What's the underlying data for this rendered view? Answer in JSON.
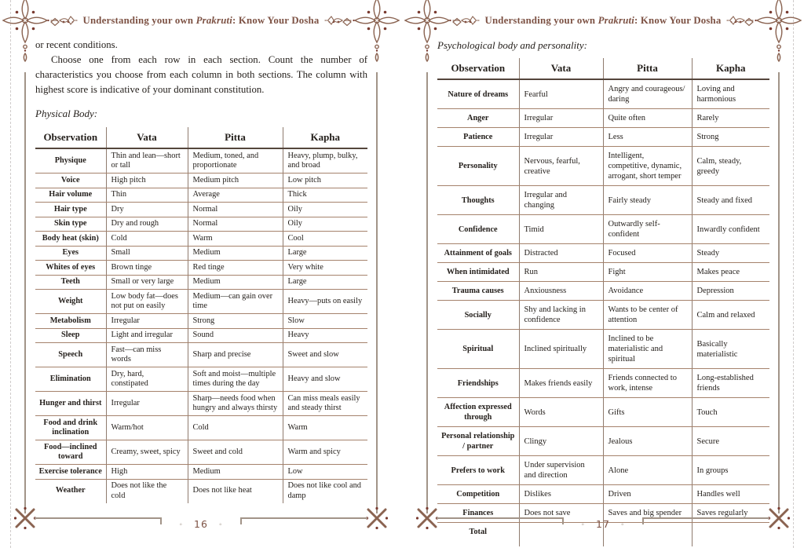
{
  "running_header": {
    "prefix": "Understanding your own ",
    "italic": "Prakruti",
    "suffix": ": Know Your Dosha"
  },
  "footer": {
    "decor": "◦"
  },
  "left_page": {
    "page_number": "16",
    "intro_continuation": "or recent conditions.",
    "intro_paragraph": "Choose one from each row in each section. Count the number of characteristics you choose from each column in both sections. The column with highest score is indicative of your dominant constitution.",
    "section_label": "Physical Body:",
    "table": {
      "headers": [
        "Observation",
        "Vata",
        "Pitta",
        "Kapha"
      ],
      "rows": [
        [
          "Physique",
          "Thin and lean—short or tall",
          "Medium, toned, and proportionate",
          "Heavy, plump, bulky, and broad"
        ],
        [
          "Voice",
          "High pitch",
          "Medium pitch",
          "Low pitch"
        ],
        [
          "Hair volume",
          "Thin",
          "Average",
          "Thick"
        ],
        [
          "Hair type",
          "Dry",
          "Normal",
          "Oily"
        ],
        [
          "Skin type",
          "Dry and rough",
          "Normal",
          "Oily"
        ],
        [
          "Body heat (skin)",
          "Cold",
          "Warm",
          "Cool"
        ],
        [
          "Eyes",
          "Small",
          "Medium",
          "Large"
        ],
        [
          "Whites of eyes",
          "Brown tinge",
          "Red tinge",
          "Very white"
        ],
        [
          "Teeth",
          "Small or very large",
          "Medium",
          "Large"
        ],
        [
          "Weight",
          "Low body fat—does not put on easily",
          "Medium—can gain over time",
          "Heavy—puts on easily"
        ],
        [
          "Metabolism",
          "Irregular",
          "Strong",
          "Slow"
        ],
        [
          "Sleep",
          "Light and irregular",
          "Sound",
          "Heavy"
        ],
        [
          "Speech",
          "Fast—can miss words",
          "Sharp and precise",
          "Sweet and slow"
        ],
        [
          "Elimination",
          "Dry, hard, constipated",
          "Soft and moist—multiple times during the day",
          "Heavy and slow"
        ],
        [
          "Hunger and thirst",
          "Irregular",
          "Sharp—needs food when hungry and always thirsty",
          "Can miss meals easily and steady thirst"
        ],
        [
          "Food and drink inclination",
          "Warm/hot",
          "Cold",
          "Warm"
        ],
        [
          "Food—inclined toward",
          "Creamy, sweet, spicy",
          "Sweet and cold",
          "Warm and spicy"
        ],
        [
          "Exercise tolerance",
          "High",
          "Medium",
          "Low"
        ],
        [
          "Weather",
          "Does not like the cold",
          "Does not like heat",
          "Does not like cool and damp"
        ]
      ]
    }
  },
  "right_page": {
    "page_number": "17",
    "section_label": "Psychological body and personality:",
    "table": {
      "headers": [
        "Observation",
        "Vata",
        "Pitta",
        "Kapha"
      ],
      "rows": [
        [
          "Nature of dreams",
          "Fearful",
          "Angry and courageous/ daring",
          "Loving and harmonious"
        ],
        [
          "Anger",
          "Irregular",
          "Quite often",
          "Rarely"
        ],
        [
          "Patience",
          "Irregular",
          "Less",
          "Strong"
        ],
        [
          "Personality",
          "Nervous, fearful, creative",
          "Intelligent, competitive, dynamic, arrogant, short temper",
          "Calm, steady, greedy"
        ],
        [
          "Thoughts",
          "Irregular and changing",
          "Fairly steady",
          "Steady and fixed"
        ],
        [
          "Confidence",
          "Timid",
          "Outwardly self-confident",
          "Inwardly confident"
        ],
        [
          "Attainment of goals",
          "Distracted",
          "Focused",
          "Steady"
        ],
        [
          "When intimidated",
          "Run",
          "Fight",
          "Makes peace"
        ],
        [
          "Trauma causes",
          "Anxiousness",
          "Avoidance",
          "Depression"
        ],
        [
          "Socially",
          "Shy and lacking in confidence",
          "Wants to be center of attention",
          "Calm and relaxed"
        ],
        [
          "Spiritual",
          "Inclined spiritually",
          "Inclined to be materialistic and spiritual",
          "Basically materialistic"
        ],
        [
          "Friendships",
          "Makes friends easily",
          "Friends connected to work, intense",
          "Long-established friends"
        ],
        [
          "Affection expressed through",
          "Words",
          "Gifts",
          "Touch"
        ],
        [
          "Personal relationship / partner",
          "Clingy",
          "Jealous",
          "Secure"
        ],
        [
          "Prefers to work",
          "Under supervision and direction",
          "Alone",
          "In groups"
        ],
        [
          "Competition",
          "Dislikes",
          "Driven",
          "Handles well"
        ],
        [
          "Finances",
          "Does not save",
          "Saves and big spender",
          "Saves regularly"
        ],
        [
          "Total",
          "",
          "",
          ""
        ]
      ]
    }
  },
  "colors": {
    "accent_brown": "#7d5244",
    "ornament_stroke": "#8a6351",
    "ornament_dot": "#7a3b30",
    "table_row_line": "#a5826c",
    "table_header_line": "#55463c",
    "page_border": "#a29488",
    "body_text": "#25201c"
  }
}
